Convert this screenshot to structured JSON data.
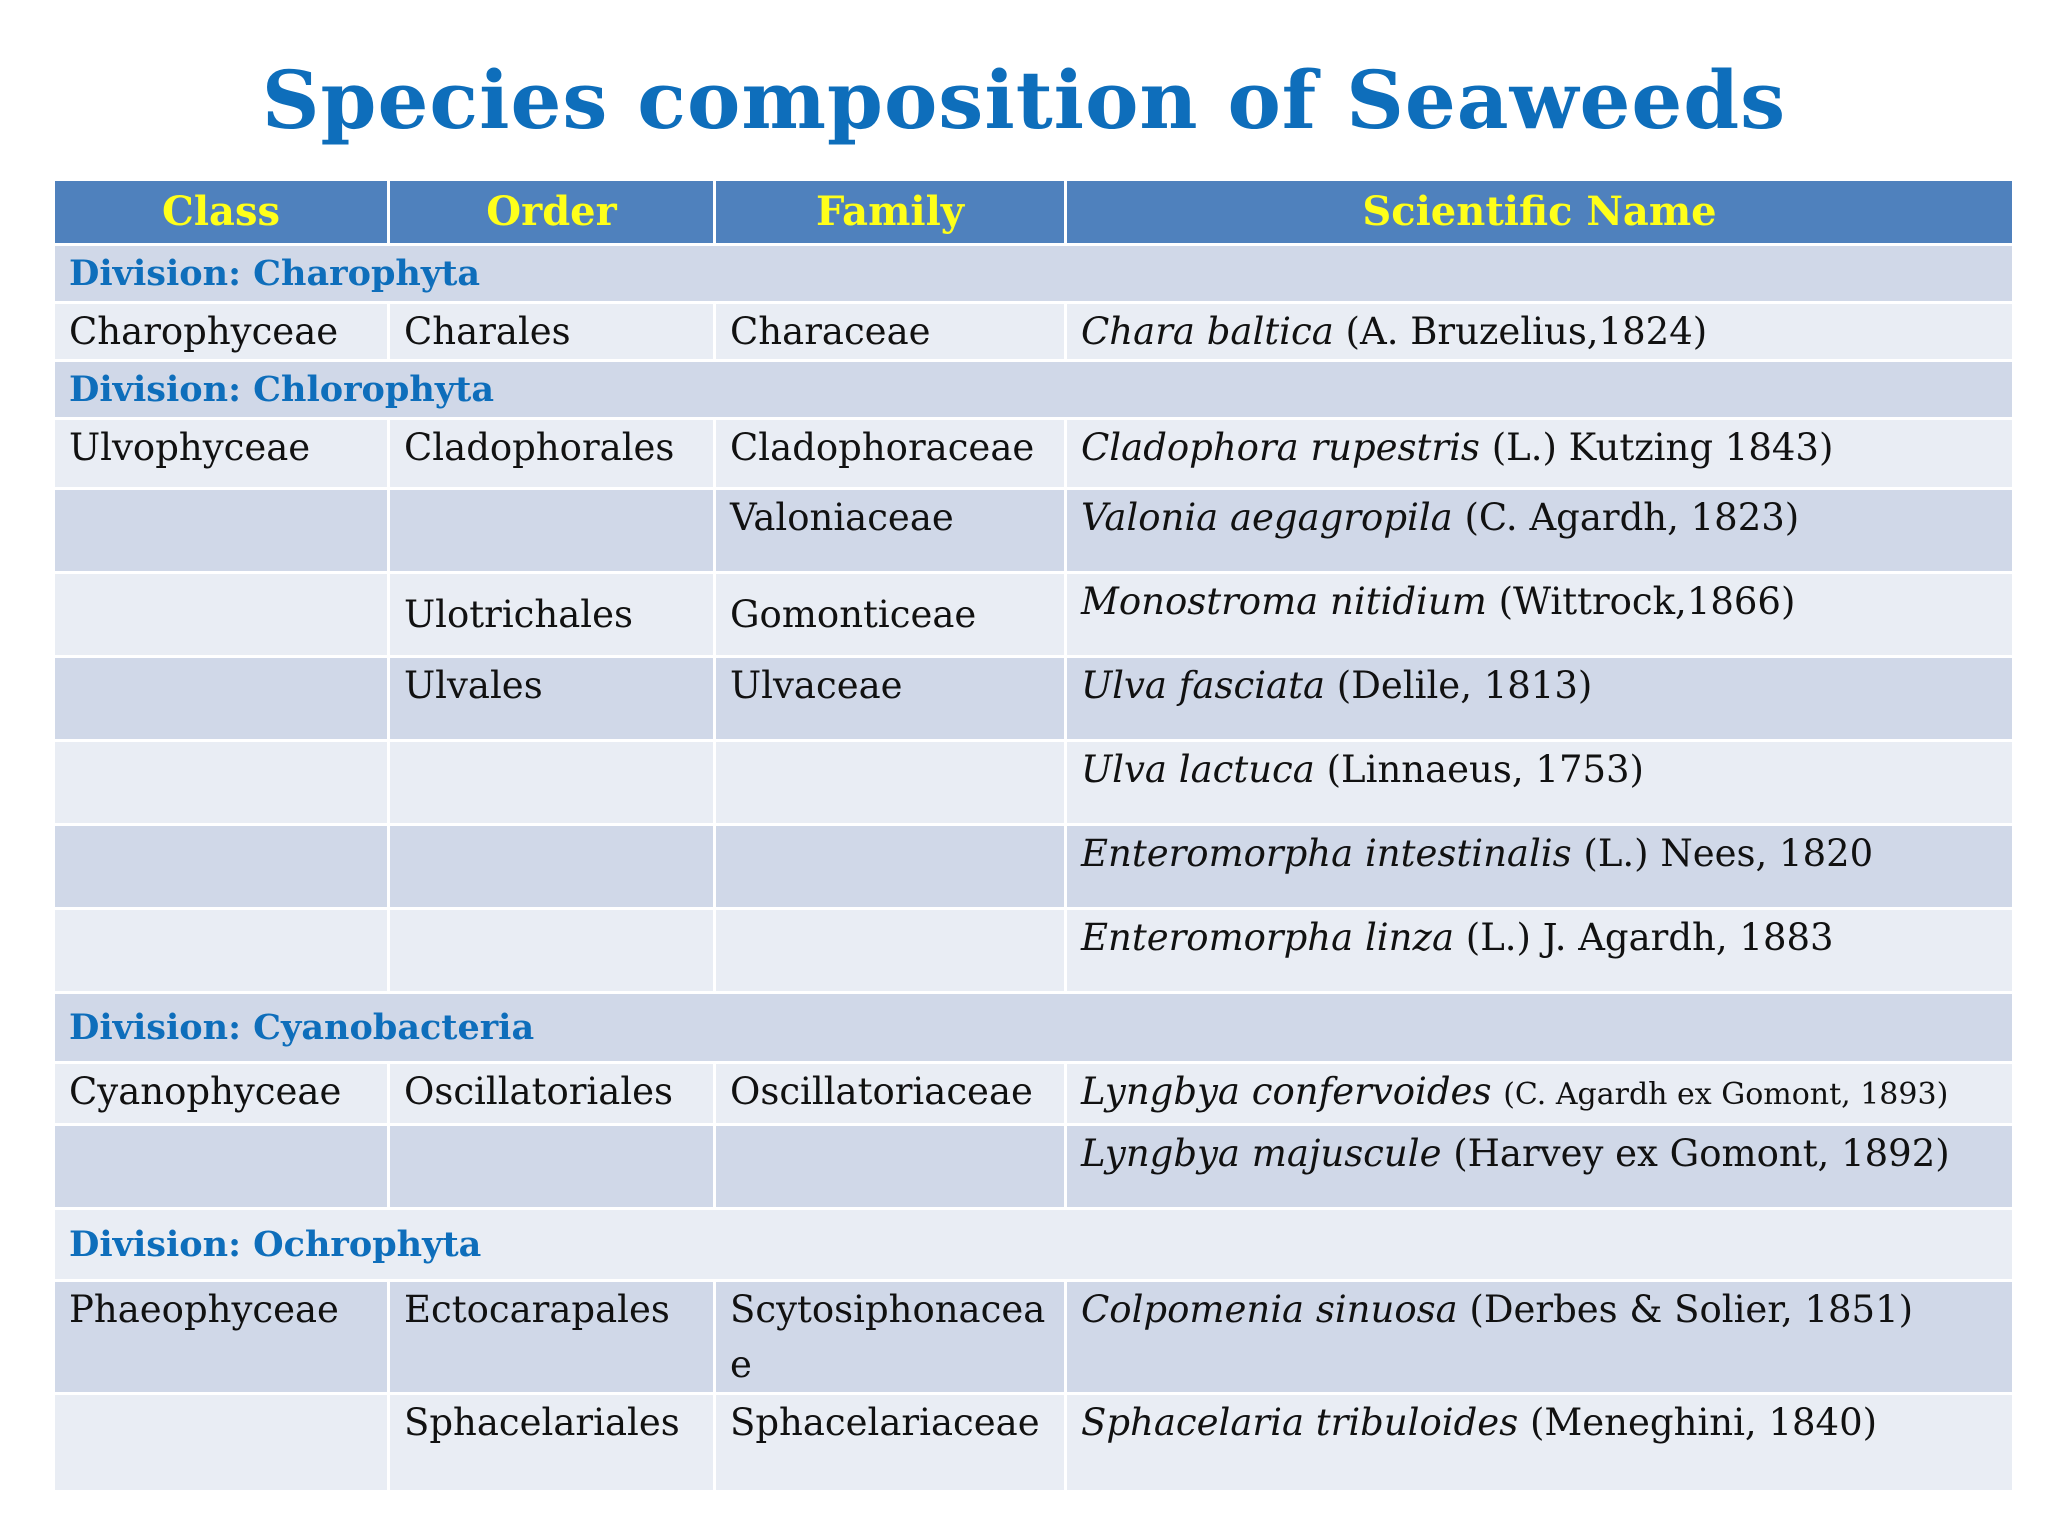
{
  "title": "Species composition of Seaweeds",
  "columns": [
    "Class",
    "Order",
    "Family",
    "Scientific Name"
  ],
  "divisions": [
    {
      "label": "Division: Charophyta",
      "rows": [
        {
          "class": "Charophyceae",
          "order": "Charales",
          "family": "Characeae",
          "species": "Chara baltica",
          "authority": "(A. Bruzelius,1824)"
        }
      ]
    },
    {
      "label": "Division: Chlorophyta",
      "rows": [
        {
          "class": "Ulvophyceae",
          "order": "Cladophorales",
          "family": "Cladophoraceae",
          "species": "Cladophora rupestris",
          "authority": "(L.) Kutzing 1843)"
        },
        {
          "class": "",
          "order": "",
          "family": "Valoniaceae",
          "species": "Valonia aegagropila",
          "authority": "(C. Agardh, 1823)"
        },
        {
          "class": "",
          "order": "Ulotrichales",
          "family": "Gomonticeae",
          "species": "Monostroma nitidium",
          "authority": "(Wittrock,1866)"
        },
        {
          "class": "",
          "order": "Ulvales",
          "family": "Ulvaceae",
          "species": "Ulva fasciata",
          "authority": "(Delile, 1813)"
        },
        {
          "class": "",
          "order": "",
          "family": "",
          "species": "Ulva lactuca",
          "authority": " (Linnaeus, 1753)"
        },
        {
          "class": "",
          "order": "",
          "family": "",
          "species": "Enteromorpha intestinalis",
          "authority": " (L.) Nees, 1820"
        },
        {
          "class": "",
          "order": "",
          "family": "",
          "species": "Enteromorpha linza",
          "authority": "(L.) J. Agardh, 1883"
        }
      ]
    },
    {
      "label": "Division: Cyanobacteria",
      "rows": [
        {
          "class": "Cyanophyceae",
          "order": "Oscillatoriales",
          "family": "Oscillatoriaceae",
          "species": "Lyngbya confervoides",
          "authority": "(C. Agardh ex Gomont, 1893)"
        },
        {
          "class": "",
          "order": "",
          "family": "",
          "species": "Lyngbya majuscule",
          "authority": " (Harvey ex Gomont, 1892)"
        }
      ]
    },
    {
      "label": "Division: Ochrophyta",
      "rows": [
        {
          "class": "Phaeophyceae",
          "order": "Ectocarapales",
          "family": "Scytosiphonaceae",
          "species": "Colpomenia sinuosa",
          "authority": "(Derbes & Solier, 1851)"
        },
        {
          "class": "",
          "order": "Sphacelariales",
          "family": "Sphacelariaceae",
          "species": "Sphacelaria tribuloides",
          "authority": "(Meneghini, 1840)"
        }
      ]
    }
  ],
  "colors": {
    "title": "#0E6EBB",
    "header_bg": "#4F81BD",
    "header_text": "#FFFF1A",
    "row_dark": "#D0D8E8",
    "row_light": "#E9EDF4",
    "division_text": "#0E6EBB"
  }
}
